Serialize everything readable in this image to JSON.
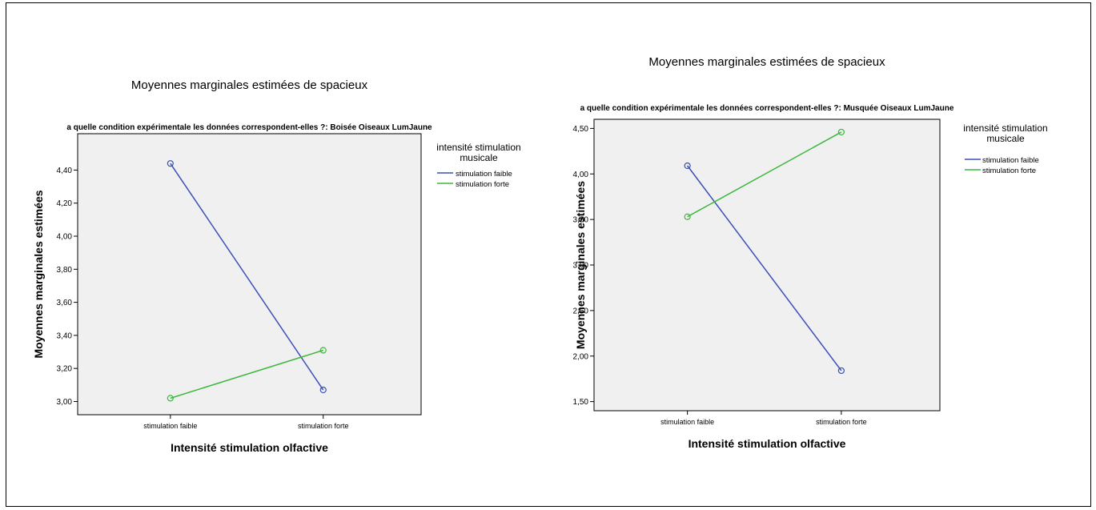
{
  "chart_data": [
    {
      "type": "line",
      "title": "Moyennes marginales estimées de spacieux",
      "subtitle": "a quelle condition expérimentale les données correspondent-elles ?: Boisée Oiseaux LumJaune",
      "xlabel": "Intensité stimulation olfactive",
      "ylabel": "Moyennes marginales estimées",
      "categories": [
        "stimulation faible",
        "stimulation forte"
      ],
      "ylim": [
        2.92,
        4.62
      ],
      "yticks": [
        "3,00",
        "3,20",
        "3,40",
        "3,60",
        "3,80",
        "4,00",
        "4,20",
        "4,40"
      ],
      "ytick_values": [
        3.0,
        3.2,
        3.4,
        3.6,
        3.8,
        4.0,
        4.2,
        4.4
      ],
      "legend_title": "intensité stimulation musicale",
      "legend_title_lines": [
        "intensité stimulation",
        "musicale"
      ],
      "legend_position": "right",
      "grid": false,
      "series": [
        {
          "name": "stimulation faible",
          "color": "#3b4fb8",
          "values": [
            4.44,
            3.07
          ]
        },
        {
          "name": "stimulation forte",
          "color": "#3cb83c",
          "values": [
            3.02,
            3.31
          ]
        }
      ]
    },
    {
      "type": "line",
      "title": "Moyennes marginales estimées de spacieux",
      "subtitle": "a quelle condition expérimentale les données correspondent-elles ?: Musquée Oiseaux LumJaune",
      "xlabel": "Intensité stimulation olfactive",
      "ylabel": "Moyennes marginales estimées",
      "categories": [
        "stimulation faible",
        "stimulation forte"
      ],
      "ylim": [
        1.4,
        4.6
      ],
      "yticks": [
        "1,50",
        "2,00",
        "2,50",
        "3,00",
        "3,50",
        "4,00",
        "4,50"
      ],
      "ytick_values": [
        1.5,
        2.0,
        2.5,
        3.0,
        3.5,
        4.0,
        4.5
      ],
      "legend_title": "intensité stimulation musicale",
      "legend_title_lines": [
        "intensité stimulation",
        "musicale"
      ],
      "legend_position": "right",
      "grid": false,
      "series": [
        {
          "name": "stimulation faible",
          "color": "#3b4fb8",
          "values": [
            4.09,
            1.84
          ]
        },
        {
          "name": "stimulation forte",
          "color": "#3cb83c",
          "values": [
            3.53,
            4.46
          ]
        }
      ]
    }
  ]
}
